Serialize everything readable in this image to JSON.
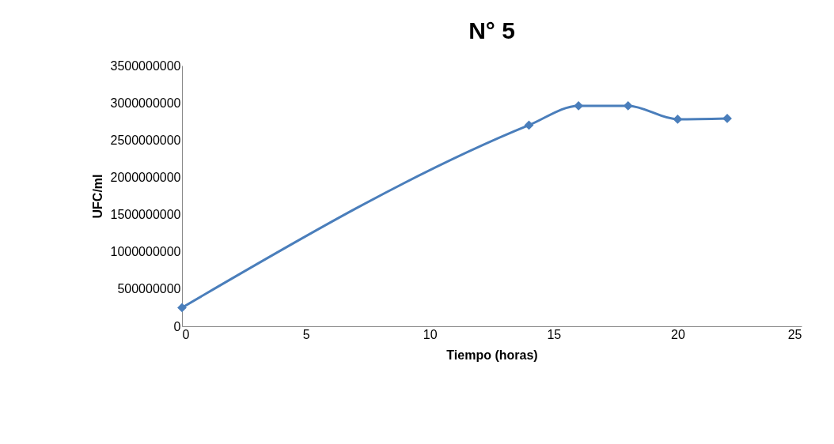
{
  "chart_data": {
    "type": "line",
    "title": "N° 5",
    "xlabel": "Tiempo (horas)",
    "ylabel": "UFC/ml",
    "x": [
      0,
      14,
      16,
      18,
      20,
      22
    ],
    "series": [
      {
        "color": "#4a7ebb",
        "values": [
          250000000,
          2700000000,
          2960000000,
          2960000000,
          2780000000,
          2790000000
        ]
      }
    ],
    "xlim": [
      0,
      25
    ],
    "xticks": [
      0,
      5,
      10,
      15,
      20,
      25
    ],
    "ylim": [
      0,
      3500000000
    ],
    "yticks": [
      0,
      500000000,
      1000000000,
      1500000000,
      2000000000,
      2500000000,
      3000000000,
      3500000000
    ],
    "grid": false,
    "legend": false,
    "marker": "diamond",
    "line_style": "solid"
  }
}
